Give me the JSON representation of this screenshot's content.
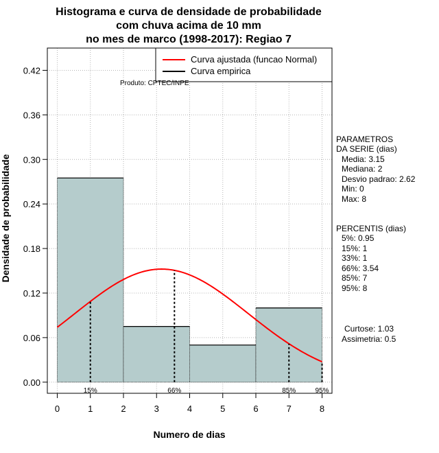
{
  "chart_data": {
    "type": "bar",
    "title_lines": [
      "Histograma e curva de densidade de probabilidade",
      "com chuva acima de 10 mm",
      "no mes de marco (1998-2017): Regiao 7"
    ],
    "xlabel": "Numero de dias",
    "ylabel": "Densidade de probabilidade",
    "xlim": [
      -0.3,
      8.3
    ],
    "ylim": [
      -0.015,
      0.45
    ],
    "x_ticks": [
      "0",
      "1",
      "2",
      "3",
      "4",
      "5",
      "6",
      "7",
      "8"
    ],
    "y_ticks": [
      "0.00",
      "0.06",
      "0.12",
      "0.18",
      "0.24",
      "0.30",
      "0.36",
      "0.42"
    ],
    "grid": true,
    "bins": [
      {
        "start": 0,
        "end": 2,
        "density": 0.275
      },
      {
        "start": 2,
        "end": 4,
        "density": 0.075
      },
      {
        "start": 4,
        "end": 6,
        "density": 0.05
      },
      {
        "start": 6,
        "end": 8,
        "density": 0.1
      }
    ],
    "normal_curve": {
      "mean": 3.15,
      "sd": 2.62
    },
    "percentile_markers": [
      {
        "label": "15%",
        "x": 1
      },
      {
        "label": "66%",
        "x": 3.54
      },
      {
        "label": "85%",
        "x": 7
      },
      {
        "label": "95%",
        "x": 8
      }
    ],
    "legend": {
      "position": "top-right",
      "entries": [
        {
          "label": "Curva ajustada (funcao Normal)",
          "color": "#ff0000"
        },
        {
          "label": "Curva empirica",
          "color": "#000000"
        }
      ]
    },
    "product_label": "Produto: CPTEC/INPE",
    "bar_color": "#b5cccc",
    "curve_color": "#ff0000",
    "grid_color": "#b4b4b4"
  },
  "parameters": {
    "heading": [
      "PARAMETROS",
      "DA SERIE (dias)"
    ],
    "lines": [
      "Media: 3.15",
      "Mediana: 2",
      "Desvio padrao: 2.62",
      "Min: 0",
      "Max: 8"
    ]
  },
  "percentiles": {
    "heading": "PERCENTIS (dias)",
    "lines": [
      "5%: 0.95",
      "15%: 1",
      "33%: 1",
      "66%: 3.54",
      "85%: 7",
      "95%: 8"
    ]
  },
  "shape_stats": {
    "lines": [
      "Curtose: 1.03",
      "Assimetria: 0.5"
    ]
  }
}
